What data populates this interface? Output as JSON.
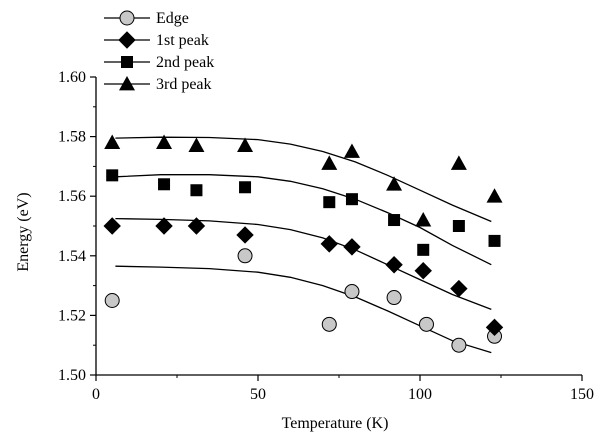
{
  "chart_data": {
    "type": "scatter",
    "title": "",
    "xlabel": "Temperature (K)",
    "ylabel": "Energy (eV)",
    "xlim": [
      0,
      150
    ],
    "ylim": [
      1.5,
      1.6
    ],
    "x_ticks": [
      0,
      50,
      100,
      150
    ],
    "y_ticks": [
      1.5,
      1.52,
      1.54,
      1.56,
      1.58,
      1.6
    ],
    "x_tick_labels": [
      "0",
      "50",
      "100",
      "150"
    ],
    "y_tick_labels": [
      "1.50",
      "1.52",
      "1.54",
      "1.56",
      "1.58",
      "1.60"
    ],
    "grid": false,
    "legend_position": "top-left",
    "series": [
      {
        "name": "Edge",
        "marker": "circle",
        "color": "#c8c8c8",
        "points": [
          [
            5,
            1.525
          ],
          [
            46,
            1.54
          ],
          [
            72,
            1.517
          ],
          [
            79,
            1.528
          ],
          [
            92,
            1.526
          ],
          [
            102,
            1.517
          ],
          [
            112,
            1.51
          ],
          [
            123,
            1.513
          ]
        ],
        "fit": [
          [
            6,
            1.5365
          ],
          [
            20,
            1.5362
          ],
          [
            35,
            1.5357
          ],
          [
            50,
            1.5345
          ],
          [
            60,
            1.5328
          ],
          [
            70,
            1.53
          ],
          [
            80,
            1.5262
          ],
          [
            90,
            1.5215
          ],
          [
            100,
            1.5165
          ],
          [
            110,
            1.5115
          ],
          [
            122,
            1.5075
          ]
        ]
      },
      {
        "name": "1st peak",
        "marker": "diamond",
        "color": "#000000",
        "points": [
          [
            5,
            1.55
          ],
          [
            21,
            1.55
          ],
          [
            31,
            1.55
          ],
          [
            46,
            1.547
          ],
          [
            72,
            1.544
          ],
          [
            79,
            1.543
          ],
          [
            92,
            1.537
          ],
          [
            101,
            1.535
          ],
          [
            112,
            1.529
          ],
          [
            123,
            1.516
          ]
        ],
        "fit": [
          [
            6,
            1.5525
          ],
          [
            20,
            1.5522
          ],
          [
            35,
            1.5517
          ],
          [
            50,
            1.5505
          ],
          [
            60,
            1.5488
          ],
          [
            70,
            1.546
          ],
          [
            80,
            1.542
          ],
          [
            90,
            1.537
          ],
          [
            100,
            1.532
          ],
          [
            110,
            1.527
          ],
          [
            122,
            1.522
          ]
        ]
      },
      {
        "name": "2nd peak",
        "marker": "square",
        "color": "#000000",
        "points": [
          [
            5,
            1.567
          ],
          [
            21,
            1.564
          ],
          [
            31,
            1.562
          ],
          [
            46,
            1.563
          ],
          [
            72,
            1.558
          ],
          [
            79,
            1.559
          ],
          [
            92,
            1.552
          ],
          [
            101,
            1.542
          ],
          [
            112,
            1.55
          ],
          [
            123,
            1.545
          ]
        ],
        "fit": [
          [
            6,
            1.5665
          ],
          [
            20,
            1.5672
          ],
          [
            35,
            1.5672
          ],
          [
            50,
            1.5665
          ],
          [
            60,
            1.565
          ],
          [
            70,
            1.5625
          ],
          [
            80,
            1.559
          ],
          [
            90,
            1.5545
          ],
          [
            100,
            1.5495
          ],
          [
            110,
            1.5435
          ],
          [
            122,
            1.537
          ]
        ]
      },
      {
        "name": "3rd peak",
        "marker": "triangle",
        "color": "#000000",
        "points": [
          [
            5,
            1.578
          ],
          [
            21,
            1.578
          ],
          [
            31,
            1.577
          ],
          [
            46,
            1.577
          ],
          [
            72,
            1.571
          ],
          [
            79,
            1.575
          ],
          [
            92,
            1.564
          ],
          [
            101,
            1.552
          ],
          [
            112,
            1.571
          ],
          [
            123,
            1.56
          ]
        ],
        "fit": [
          [
            6,
            1.5795
          ],
          [
            20,
            1.5798
          ],
          [
            35,
            1.5797
          ],
          [
            50,
            1.579
          ],
          [
            60,
            1.5775
          ],
          [
            70,
            1.575
          ],
          [
            80,
            1.5715
          ],
          [
            90,
            1.567
          ],
          [
            100,
            1.562
          ],
          [
            110,
            1.557
          ],
          [
            122,
            1.5515
          ]
        ]
      }
    ]
  }
}
